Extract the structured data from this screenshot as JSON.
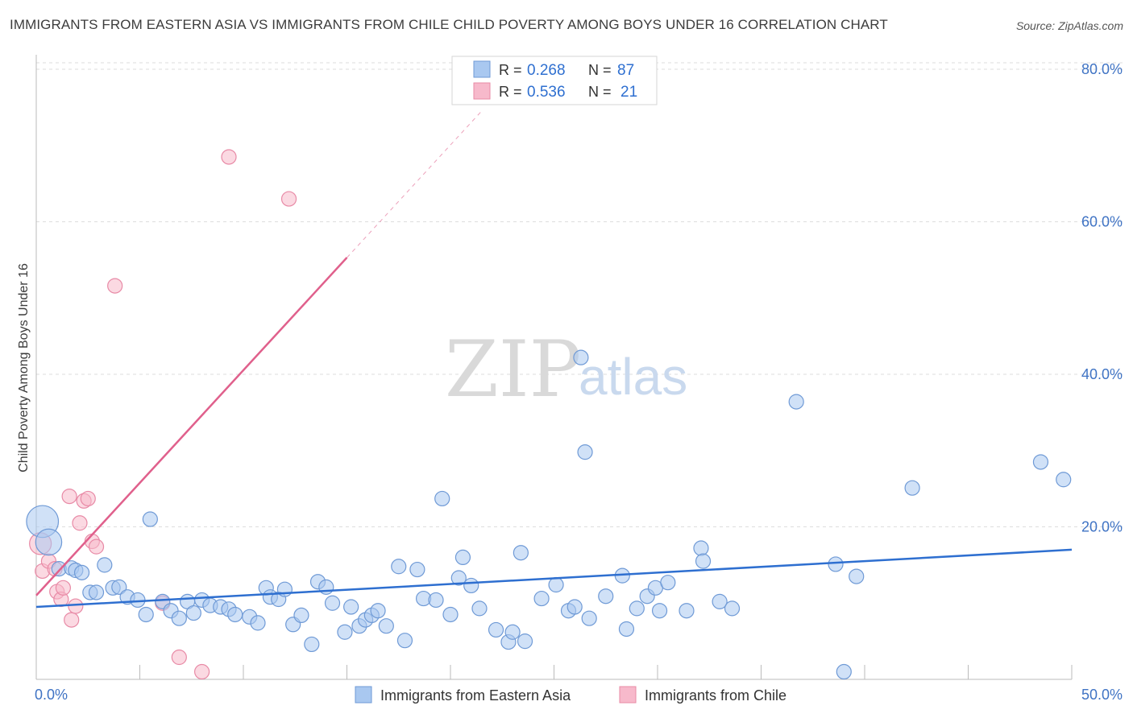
{
  "header": {
    "title": "IMMIGRANTS FROM EASTERN ASIA VS IMMIGRANTS FROM CHILE CHILD POVERTY AMONG BOYS UNDER 16 CORRELATION CHART",
    "source": "Source: ZipAtlas.com"
  },
  "watermark": {
    "part1": "ZIP",
    "part2": "atlas"
  },
  "legend": {
    "r_label": "R =",
    "n_label": "N =",
    "rows": [
      {
        "r": "0.268",
        "n": "87",
        "color": "#a9c8f0"
      },
      {
        "r": "0.536",
        "n": "21",
        "color": "#f7b9cb"
      }
    ]
  },
  "bottom_legend": {
    "items": [
      {
        "label": "Immigrants from Eastern Asia",
        "color": "#a9c8f0"
      },
      {
        "label": "Immigrants from Chile",
        "color": "#f7b9cb"
      }
    ]
  },
  "colors": {
    "blue_fill": "#a9c8f0",
    "blue_stroke": "#6f9ad6",
    "blue_line": "#2e6fd0",
    "pink_fill": "#f7b9cb",
    "pink_stroke": "#e88aa6",
    "pink_line": "#e0608c",
    "grid": "#dddddd",
    "axis": "#bbbbbb"
  },
  "chart_data": {
    "type": "scatter",
    "title": "IMMIGRANTS FROM EASTERN ASIA VS IMMIGRANTS FROM CHILE CHILD POVERTY AMONG BOYS UNDER 16 CORRELATION CHART",
    "xlabel": "",
    "ylabel": "Child Poverty Among Boys Under 16",
    "xlim": [
      0,
      50
    ],
    "ylim": [
      0,
      80
    ],
    "x_tick_labels": [
      "0.0%",
      "50.0%"
    ],
    "y_tick_labels": [
      {
        "value": 20,
        "label": "20.0%"
      },
      {
        "value": 40,
        "label": "40.0%"
      },
      {
        "value": 60,
        "label": "60.0%"
      },
      {
        "value": 80,
        "label": "80.0%"
      }
    ],
    "series": [
      {
        "name": "Immigrants from Eastern Asia",
        "points": [
          [
            0.3,
            20.7,
            2.2
          ],
          [
            0.6,
            18.0,
            1.8
          ],
          [
            1.1,
            14.5,
            1
          ],
          [
            1.7,
            14.6,
            1
          ],
          [
            1.9,
            14.3,
            1
          ],
          [
            2.2,
            14.0,
            1
          ],
          [
            2.6,
            11.4,
            1
          ],
          [
            2.9,
            11.4,
            1
          ],
          [
            3.3,
            15.0,
            1
          ],
          [
            3.7,
            12.0,
            1
          ],
          [
            4.0,
            12.1,
            1
          ],
          [
            4.4,
            10.8,
            1
          ],
          [
            4.9,
            10.4,
            1
          ],
          [
            5.3,
            8.5,
            1
          ],
          [
            5.5,
            21.0,
            1
          ],
          [
            6.1,
            10.2,
            1
          ],
          [
            6.5,
            9.0,
            1
          ],
          [
            6.9,
            8.0,
            1
          ],
          [
            7.3,
            10.2,
            1
          ],
          [
            7.6,
            8.7,
            1
          ],
          [
            8.0,
            10.4,
            1
          ],
          [
            8.4,
            9.7,
            1
          ],
          [
            8.9,
            9.5,
            1
          ],
          [
            9.3,
            9.2,
            1
          ],
          [
            9.6,
            8.5,
            1
          ],
          [
            10.3,
            8.2,
            1
          ],
          [
            10.7,
            7.4,
            1
          ],
          [
            11.1,
            12.0,
            1
          ],
          [
            11.3,
            10.8,
            1
          ],
          [
            11.7,
            10.5,
            1
          ],
          [
            12.0,
            11.8,
            1
          ],
          [
            12.4,
            7.2,
            1
          ],
          [
            12.8,
            8.4,
            1
          ],
          [
            13.3,
            4.6,
            1
          ],
          [
            13.6,
            12.8,
            1
          ],
          [
            14.0,
            12.1,
            1
          ],
          [
            14.3,
            10.0,
            1
          ],
          [
            14.9,
            6.2,
            1
          ],
          [
            15.2,
            9.5,
            1
          ],
          [
            15.6,
            7.0,
            1
          ],
          [
            15.9,
            7.8,
            1
          ],
          [
            16.2,
            8.4,
            1
          ],
          [
            16.5,
            9.0,
            1
          ],
          [
            16.9,
            7.0,
            1
          ],
          [
            17.5,
            14.8,
            1
          ],
          [
            17.8,
            5.1,
            1
          ],
          [
            18.4,
            14.4,
            1
          ],
          [
            18.7,
            10.6,
            1
          ],
          [
            19.3,
            10.4,
            1
          ],
          [
            19.6,
            23.7,
            1
          ],
          [
            20.0,
            8.5,
            1
          ],
          [
            20.4,
            13.3,
            1
          ],
          [
            20.6,
            16.0,
            1
          ],
          [
            21.0,
            12.3,
            1
          ],
          [
            21.4,
            9.3,
            1
          ],
          [
            22.2,
            6.5,
            1
          ],
          [
            22.8,
            4.9,
            1
          ],
          [
            23.0,
            6.2,
            1
          ],
          [
            23.4,
            16.6,
            1
          ],
          [
            23.6,
            5.0,
            1
          ],
          [
            24.4,
            10.6,
            1
          ],
          [
            25.1,
            12.4,
            1
          ],
          [
            25.7,
            9.0,
            1
          ],
          [
            26.0,
            9.5,
            1
          ],
          [
            26.3,
            42.2,
            1
          ],
          [
            26.5,
            29.8,
            1
          ],
          [
            26.7,
            8.0,
            1
          ],
          [
            27.5,
            10.9,
            1
          ],
          [
            28.3,
            13.6,
            1
          ],
          [
            28.5,
            6.6,
            1
          ],
          [
            29.0,
            9.3,
            1
          ],
          [
            29.5,
            10.9,
            1
          ],
          [
            29.9,
            12.0,
            1
          ],
          [
            30.1,
            9.0,
            1
          ],
          [
            30.5,
            12.7,
            1
          ],
          [
            31.4,
            9.0,
            1
          ],
          [
            32.1,
            17.2,
            1
          ],
          [
            32.2,
            15.5,
            1
          ],
          [
            33.0,
            10.2,
            1
          ],
          [
            33.6,
            9.3,
            1
          ],
          [
            36.7,
            36.4,
            1
          ],
          [
            38.6,
            15.1,
            1
          ],
          [
            39.0,
            1.0,
            1
          ],
          [
            39.6,
            13.5,
            1
          ],
          [
            42.3,
            25.1,
            1
          ],
          [
            48.5,
            28.5,
            1
          ],
          [
            49.6,
            26.2,
            1
          ]
        ]
      },
      {
        "name": "Immigrants from Chile",
        "points": [
          [
            0.2,
            17.8,
            1.5
          ],
          [
            0.3,
            14.2,
            1
          ],
          [
            0.6,
            15.5,
            1
          ],
          [
            0.9,
            14.5,
            1
          ],
          [
            1.0,
            11.5,
            1
          ],
          [
            1.2,
            10.5,
            1
          ],
          [
            1.3,
            12.0,
            1
          ],
          [
            1.6,
            24.0,
            1
          ],
          [
            1.7,
            7.8,
            1
          ],
          [
            1.9,
            9.6,
            1
          ],
          [
            2.1,
            20.5,
            1
          ],
          [
            2.3,
            23.4,
            1
          ],
          [
            2.5,
            23.7,
            1
          ],
          [
            2.7,
            18.1,
            1
          ],
          [
            2.9,
            17.4,
            1
          ],
          [
            3.8,
            51.6,
            1
          ],
          [
            6.1,
            10.0,
            1
          ],
          [
            6.9,
            2.9,
            1
          ],
          [
            8.0,
            1.0,
            1
          ],
          [
            9.3,
            68.5,
            1
          ],
          [
            12.2,
            63.0,
            1
          ]
        ]
      }
    ],
    "trendlines": [
      {
        "series": "Immigrants from Eastern Asia",
        "x": [
          0,
          50
        ],
        "y": [
          9.5,
          17.0
        ],
        "style": "solid"
      },
      {
        "series": "Immigrants from Chile",
        "x": [
          0,
          15
        ],
        "y": [
          11.0,
          55.3
        ],
        "style": "solid"
      },
      {
        "series": "Immigrants from Chile",
        "x": [
          15,
          21.5
        ],
        "y": [
          55.3,
          74.5
        ],
        "style": "dashed"
      }
    ],
    "grid": true,
    "legend_position": "top-center"
  }
}
